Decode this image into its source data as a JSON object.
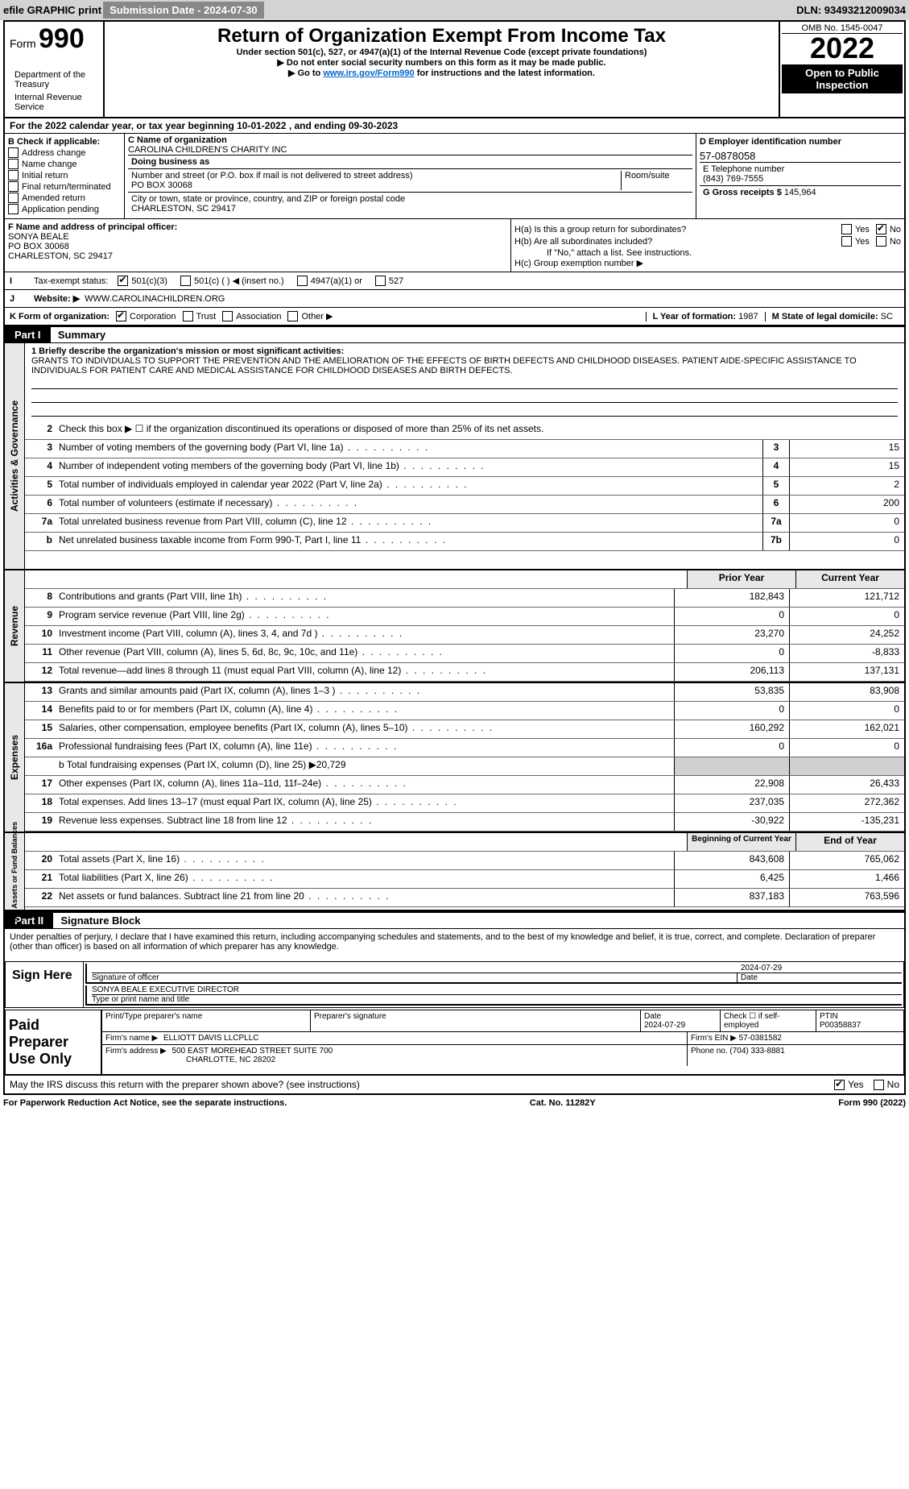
{
  "topbar": {
    "efile": "efile GRAPHIC print",
    "subdate_label": "Submission Date - 2024-07-30",
    "dln": "DLN: 93493212009034"
  },
  "header": {
    "form_label": "Form",
    "form_number": "990",
    "title": "Return of Organization Exempt From Income Tax",
    "subtitle": "Under section 501(c), 527, or 4947(a)(1) of the Internal Revenue Code (except private foundations)",
    "warn": "▶ Do not enter social security numbers on this form as it may be made public.",
    "goto_pre": "▶ Go to ",
    "goto_link": "www.irs.gov/Form990",
    "goto_post": " for instructions and the latest information.",
    "omb": "OMB No. 1545-0047",
    "year": "2022",
    "inspect": "Open to Public Inspection",
    "dept": "Department of the Treasury",
    "irs": "Internal Revenue Service"
  },
  "block_a": {
    "text": "For the 2022 calendar year, or tax year beginning 10-01-2022    , and ending 09-30-2023"
  },
  "block_b": {
    "label": "B Check if applicable:",
    "items": [
      "Address change",
      "Name change",
      "Initial return",
      "Final return/terminated",
      "Amended return",
      "Application pending"
    ]
  },
  "block_c": {
    "name_label": "C Name of organization",
    "name": "CAROLINA CHILDREN'S CHARITY INC",
    "dba_label": "Doing business as",
    "street_label": "Number and street (or P.O. box if mail is not delivered to street address)",
    "room_label": "Room/suite",
    "street": "PO BOX 30068",
    "city_label": "City or town, state or province, country, and ZIP or foreign postal code",
    "city": "CHARLESTON, SC  29417"
  },
  "block_d": {
    "label": "D Employer identification number",
    "ein": "57-0878058"
  },
  "block_e": {
    "label": "E Telephone number",
    "phone": "(843) 769-7555"
  },
  "block_g": {
    "label": "G Gross receipts $",
    "val": "145,964"
  },
  "block_f": {
    "label": "F  Name and address of principal officer:",
    "name": "SONYA BEALE",
    "street": "PO BOX 30068",
    "city": "CHARLESTON, SC  29417"
  },
  "block_h": {
    "a": "H(a)  Is this a group return for subordinates?",
    "b": "H(b)  Are all subordinates included?",
    "note": "If \"No,\" attach a list. See instructions.",
    "c": "H(c)  Group exemption number ▶",
    "yes": "Yes",
    "no": "No"
  },
  "block_i": {
    "label": "Tax-exempt status:",
    "c3": "501(c)(3)",
    "c": "501(c) (   ) ◀ (insert no.)",
    "a1": "4947(a)(1) or",
    "527": "527"
  },
  "block_j": {
    "label": "Website: ▶",
    "val": "WWW.CAROLINACHILDREN.ORG"
  },
  "block_k": {
    "label": "K Form of organization:",
    "corp": "Corporation",
    "trust": "Trust",
    "assoc": "Association",
    "other": "Other ▶"
  },
  "block_l": {
    "label": "L Year of formation:",
    "val": "1987"
  },
  "block_m": {
    "label": "M State of legal domicile:",
    "val": "SC"
  },
  "part1": {
    "header": "Part I",
    "title": "Summary",
    "tab1": "Activities & Governance",
    "tab2": "Revenue",
    "tab3": "Expenses",
    "tab4": "Net Assets or Fund Balances",
    "line1_label": "1  Briefly describe the organization's mission or most significant activities:",
    "line1": "GRANTS TO INDIVIDUALS TO SUPPORT THE PREVENTION AND THE AMELIORATION OF THE EFFECTS OF BIRTH DEFECTS AND CHILDHOOD DISEASES. PATIENT AIDE-SPECIFIC ASSISTANCE TO INDIVIDUALS FOR PATIENT CARE AND MEDICAL ASSISTANCE FOR CHILDHOOD DISEASES AND BIRTH DEFECTS.",
    "line2": "Check this box ▶ ☐  if the organization discontinued its operations or disposed of more than 25% of its net assets.",
    "prior_label": "Prior Year",
    "current_label": "Current Year",
    "begin_label": "Beginning of Current Year",
    "end_label": "End of Year",
    "lines_single": [
      {
        "n": "3",
        "desc": "Number of voting members of the governing body (Part VI, line 1a)",
        "box": "3",
        "val": "15"
      },
      {
        "n": "4",
        "desc": "Number of independent voting members of the governing body (Part VI, line 1b)",
        "box": "4",
        "val": "15"
      },
      {
        "n": "5",
        "desc": "Total number of individuals employed in calendar year 2022 (Part V, line 2a)",
        "box": "5",
        "val": "2"
      },
      {
        "n": "6",
        "desc": "Total number of volunteers (estimate if necessary)",
        "box": "6",
        "val": "200"
      },
      {
        "n": "7a",
        "desc": "Total unrelated business revenue from Part VIII, column (C), line 12",
        "box": "7a",
        "val": "0"
      },
      {
        "n": "b",
        "desc": "Net unrelated business taxable income from Form 990-T, Part I, line 11",
        "box": "7b",
        "val": "0"
      }
    ],
    "lines_dual_rev": [
      {
        "n": "8",
        "desc": "Contributions and grants (Part VIII, line 1h)",
        "prior": "182,843",
        "curr": "121,712"
      },
      {
        "n": "9",
        "desc": "Program service revenue (Part VIII, line 2g)",
        "prior": "0",
        "curr": "0"
      },
      {
        "n": "10",
        "desc": "Investment income (Part VIII, column (A), lines 3, 4, and 7d )",
        "prior": "23,270",
        "curr": "24,252"
      },
      {
        "n": "11",
        "desc": "Other revenue (Part VIII, column (A), lines 5, 6d, 8c, 9c, 10c, and 11e)",
        "prior": "0",
        "curr": "-8,833"
      },
      {
        "n": "12",
        "desc": "Total revenue—add lines 8 through 11 (must equal Part VIII, column (A), line 12)",
        "prior": "206,113",
        "curr": "137,131"
      }
    ],
    "lines_dual_exp": [
      {
        "n": "13",
        "desc": "Grants and similar amounts paid (Part IX, column (A), lines 1–3 )",
        "prior": "53,835",
        "curr": "83,908"
      },
      {
        "n": "14",
        "desc": "Benefits paid to or for members (Part IX, column (A), line 4)",
        "prior": "0",
        "curr": "0"
      },
      {
        "n": "15",
        "desc": "Salaries, other compensation, employee benefits (Part IX, column (A), lines 5–10)",
        "prior": "160,292",
        "curr": "162,021"
      },
      {
        "n": "16a",
        "desc": "Professional fundraising fees (Part IX, column (A), line 11e)",
        "prior": "0",
        "curr": "0"
      }
    ],
    "line_b": "b  Total fundraising expenses (Part IX, column (D), line 25) ▶20,729",
    "lines_dual_exp2": [
      {
        "n": "17",
        "desc": "Other expenses (Part IX, column (A), lines 11a–11d, 11f–24e)",
        "prior": "22,908",
        "curr": "26,433"
      },
      {
        "n": "18",
        "desc": "Total expenses. Add lines 13–17 (must equal Part IX, column (A), line 25)",
        "prior": "237,035",
        "curr": "272,362"
      },
      {
        "n": "19",
        "desc": "Revenue less expenses. Subtract line 18 from line 12",
        "prior": "-30,922",
        "curr": "-135,231"
      }
    ],
    "lines_dual_net": [
      {
        "n": "20",
        "desc": "Total assets (Part X, line 16)",
        "prior": "843,608",
        "curr": "765,062"
      },
      {
        "n": "21",
        "desc": "Total liabilities (Part X, line 26)",
        "prior": "6,425",
        "curr": "1,466"
      },
      {
        "n": "22",
        "desc": "Net assets or fund balances. Subtract line 21 from line 20",
        "prior": "837,183",
        "curr": "763,596"
      }
    ]
  },
  "part2": {
    "header": "Part II",
    "title": "Signature Block",
    "decl": "Under penalties of perjury, I declare that I have examined this return, including accompanying schedules and statements, and to the best of my knowledge and belief, it is true, correct, and complete. Declaration of preparer (other than officer) is based on all information of which preparer has any knowledge.",
    "sign_here": "Sign Here",
    "sig_officer": "Signature of officer",
    "date": "Date",
    "sig_date": "2024-07-29",
    "name_title": "SONYA BEALE  EXECUTIVE DIRECTOR",
    "type_print": "Type or print name and title",
    "paid": "Paid Preparer Use Only",
    "prep_name_label": "Print/Type preparer's name",
    "prep_sig_label": "Preparer's signature",
    "prep_date": "2024-07-29",
    "check_self": "Check ☐ if self-employed",
    "ptin_label": "PTIN",
    "ptin": "P00358837",
    "firm_name_label": "Firm's name    ▶",
    "firm_name": "ELLIOTT DAVIS LLCPLLC",
    "firm_ein_label": "Firm's EIN ▶",
    "firm_ein": "57-0381582",
    "firm_addr_label": "Firm's address ▶",
    "firm_addr1": "500 EAST MOREHEAD STREET SUITE 700",
    "firm_addr2": "CHARLOTTE, NC  28202",
    "phone_label": "Phone no.",
    "phone": "(704) 333-8881",
    "discuss": "May the IRS discuss this return with the preparer shown above? (see instructions)",
    "yes": "Yes",
    "no": "No"
  },
  "footer": {
    "pra": "For Paperwork Reduction Act Notice, see the separate instructions.",
    "cat": "Cat. No. 11282Y",
    "form": "Form 990 (2022)"
  },
  "colors": {
    "topbar_bg": "#d3d3d3",
    "btn_bg": "#888888",
    "black": "#000000",
    "link": "#0066cc",
    "grey_cell": "#d0d0d0",
    "side_bg": "#e8e8e8"
  }
}
